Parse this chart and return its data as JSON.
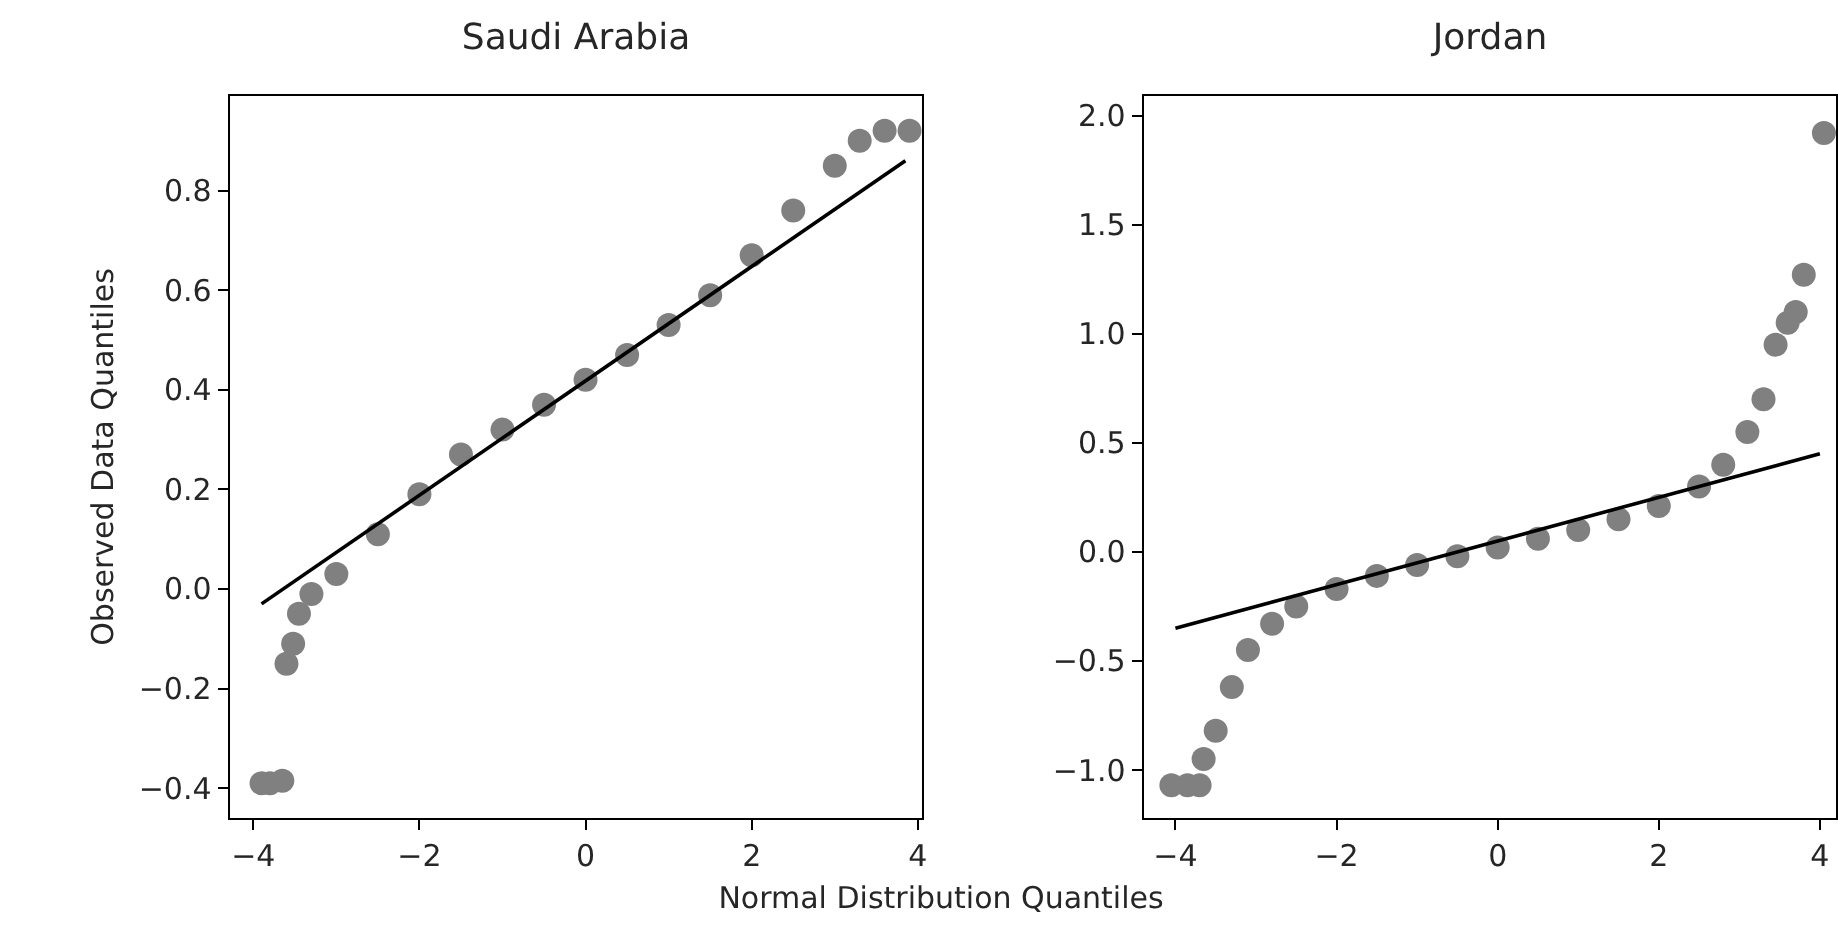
{
  "chart_data": [
    {
      "type": "scatter",
      "title": "Saudi Arabia",
      "ylabel": "Observed Data Quantiles",
      "xlabel": "Normal Distribution Quantiles",
      "grid": false,
      "xlim": [
        -4.28,
        4.05
      ],
      "xticks": [
        -4,
        -2,
        0,
        2,
        4
      ],
      "ylim": [
        -0.46,
        0.99
      ],
      "yticks": [
        -0.4,
        -0.2,
        {
          "value": 0,
          "label": "0.0"
        },
        0.2,
        0.4,
        0.6,
        0.8
      ],
      "series": [
        {
          "marker": "circle",
          "color": "#808080",
          "x": [
            -3.9,
            -3.8,
            -3.65,
            -3.6,
            -3.52,
            -3.45,
            -3.3,
            -3.0,
            -2.5,
            -2.0,
            -1.5,
            -1.0,
            -0.5,
            0,
            0.5,
            1.0,
            1.5,
            2.0,
            2.5,
            3.0,
            3.3,
            3.6,
            3.9
          ],
          "values": [
            -0.39,
            -0.39,
            -0.385,
            -0.15,
            -0.11,
            -0.05,
            -0.01,
            0.03,
            0.11,
            0.19,
            0.27,
            0.32,
            0.37,
            0.42,
            0.47,
            0.53,
            0.59,
            0.67,
            0.76,
            0.85,
            0.9,
            0.92,
            0.92
          ]
        },
        {
          "type": "line",
          "color": "#000000",
          "x": [
            -3.9,
            3.85
          ],
          "values": [
            -0.03,
            0.86
          ]
        }
      ]
    },
    {
      "type": "scatter",
      "title": "Jordan",
      "grid": false,
      "xlim": [
        -4.39,
        4.2
      ],
      "xticks": [
        -4,
        -2,
        0,
        2,
        4
      ],
      "ylim": [
        -1.22,
        2.09
      ],
      "yticks": [
        {
          "value": -1,
          "label": "−1.0"
        },
        -0.5,
        {
          "value": 0,
          "label": "0.0"
        },
        0.5,
        {
          "value": 1,
          "label": "1.0"
        },
        1.5,
        {
          "value": 2,
          "label": "2.0"
        }
      ],
      "series": [
        {
          "marker": "circle",
          "color": "#808080",
          "x": [
            -4.05,
            -3.85,
            -3.7,
            -3.65,
            -3.5,
            -3.3,
            -3.1,
            -2.8,
            -2.5,
            -2.0,
            -1.5,
            -1.0,
            -0.5,
            0,
            0.5,
            1.0,
            1.5,
            2.0,
            2.5,
            2.8,
            3.1,
            3.3,
            3.45,
            3.6,
            3.7,
            3.8,
            4.05
          ],
          "values": [
            -1.07,
            -1.07,
            -1.07,
            -0.95,
            -0.82,
            -0.62,
            -0.45,
            -0.33,
            -0.25,
            -0.17,
            -0.11,
            -0.06,
            -0.02,
            0.02,
            0.06,
            0.1,
            0.15,
            0.21,
            0.3,
            0.4,
            0.55,
            0.7,
            0.95,
            1.05,
            1.1,
            1.27,
            1.92
          ]
        },
        {
          "type": "line",
          "color": "#000000",
          "x": [
            -4.0,
            4.0
          ],
          "values": [
            -0.35,
            0.45
          ]
        }
      ]
    }
  ]
}
